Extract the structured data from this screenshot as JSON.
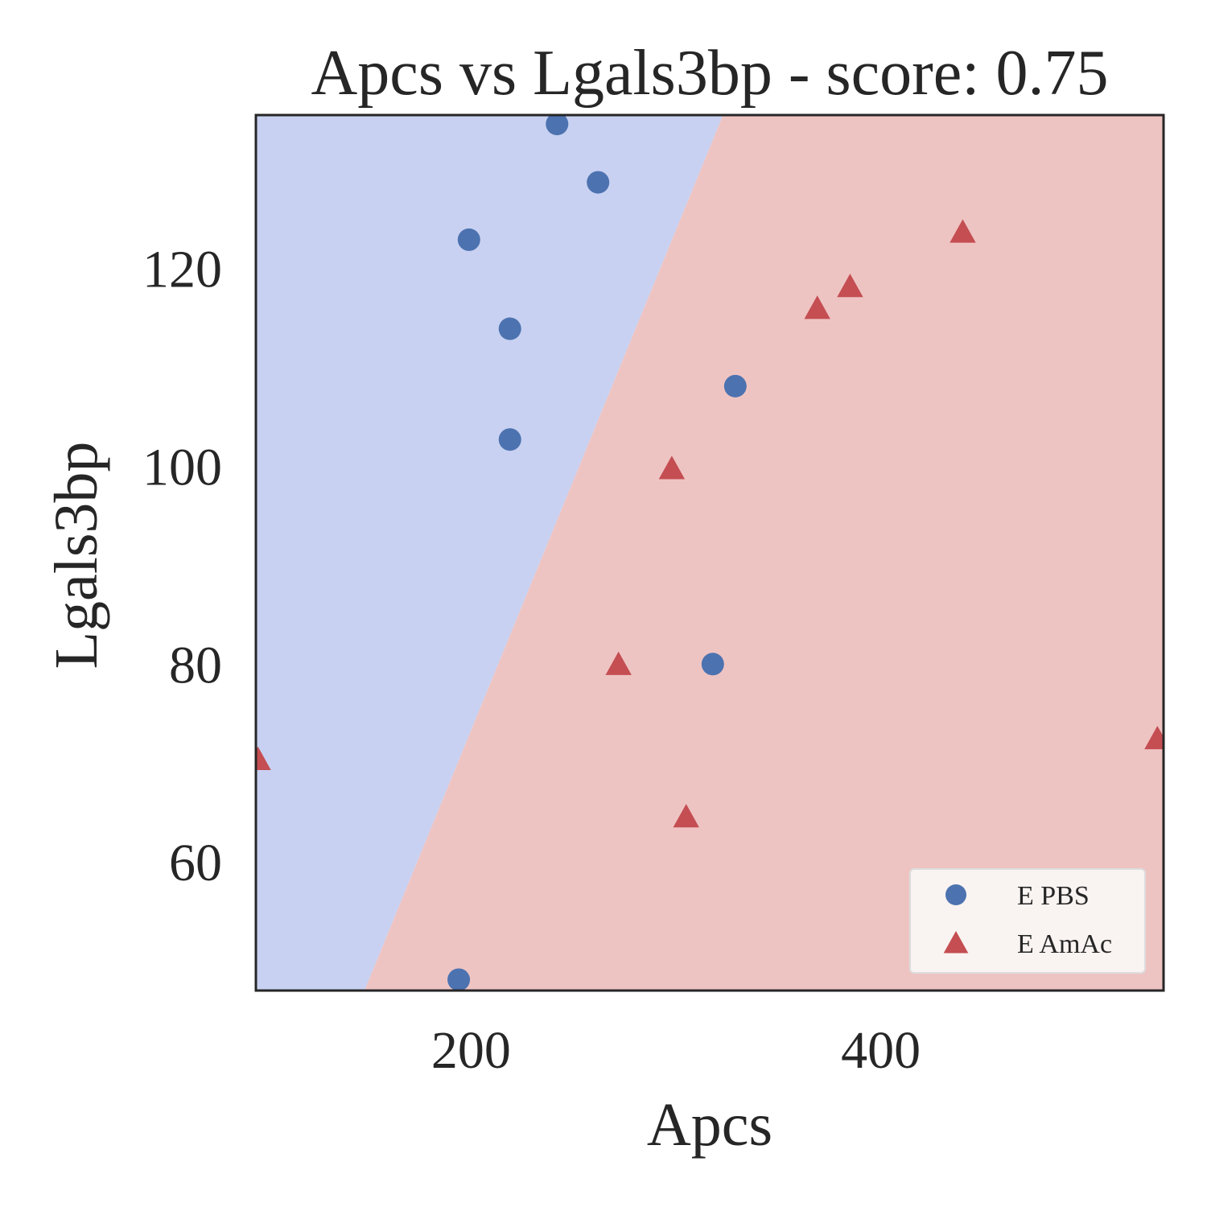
{
  "chart_data": {
    "type": "scatter",
    "title": "Apcs vs Lgals3bp - score: 0.75",
    "xlabel": "Apcs",
    "ylabel": "Lgals3bp",
    "xlim": [
      95,
      538
    ],
    "ylim": [
      47.0,
      135.5
    ],
    "xticks": [
      200,
      400
    ],
    "xtick_labels": [
      "200",
      "400"
    ],
    "yticks": [
      60,
      80,
      100,
      120
    ],
    "ytick_labels": [
      "60",
      "80",
      "100",
      "120"
    ],
    "grid": false,
    "legend": {
      "placement": "lower-right"
    },
    "decision_boundary": {
      "description": "linear boundary separating classes",
      "points": [
        [
          148,
          47.0
        ],
        [
          323,
          135.5
        ]
      ],
      "left_region_color": "#c8d1f1",
      "right_region_color": "#eec4c3"
    },
    "series": [
      {
        "name": "E PBS",
        "marker": "circle",
        "color": "#4c72b0",
        "points": [
          [
            242,
            134.6
          ],
          [
            262,
            128.7
          ],
          [
            199,
            122.9
          ],
          [
            219,
            113.9
          ],
          [
            219,
            102.7
          ],
          [
            329,
            108.1
          ],
          [
            318,
            80.0
          ],
          [
            194,
            48.1
          ]
        ]
      },
      {
        "name": "E AmAc",
        "marker": "triangle",
        "color": "#c44e52",
        "points": [
          [
            440,
            123.5
          ],
          [
            385,
            118.0
          ],
          [
            369,
            115.8
          ],
          [
            298,
            99.6
          ],
          [
            272,
            79.8
          ],
          [
            305,
            64.4
          ],
          [
            96,
            70.2
          ],
          [
            535,
            72.3
          ]
        ]
      }
    ]
  }
}
